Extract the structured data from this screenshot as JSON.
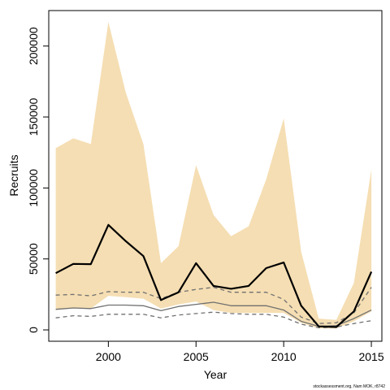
{
  "chart_data": {
    "type": "line",
    "xlabel": "Year",
    "ylabel": "Recruits",
    "xlim": [
      1996.6,
      2015.6
    ],
    "ylim": [
      -8000,
      225000
    ],
    "x_ticks": [
      2000,
      2005,
      2010,
      2015
    ],
    "y_ticks": [
      0,
      50000,
      100000,
      150000,
      200000
    ],
    "x": [
      1997,
      1998,
      1999,
      2000,
      2001,
      2002,
      2003,
      2004,
      2005,
      2006,
      2007,
      2008,
      2009,
      2010,
      2011,
      2012,
      2013,
      2014,
      2015
    ],
    "band": {
      "upper": [
        128000,
        135000,
        131000,
        217000,
        167000,
        131000,
        47000,
        59000,
        116000,
        81000,
        66000,
        73000,
        106000,
        149000,
        55000,
        8000,
        7000,
        33000,
        113000
      ],
      "lower": [
        14000,
        15000,
        15000,
        24000,
        23000,
        22000,
        15000,
        18000,
        20000,
        14000,
        12000,
        12000,
        12000,
        12000,
        5000,
        1000,
        1000,
        6000,
        13000
      ],
      "color": "#f5deb3"
    },
    "series": [
      {
        "key": "main",
        "values": [
          40000,
          46500,
          46300,
          74000,
          62500,
          52000,
          21000,
          26500,
          47000,
          31000,
          29000,
          31000,
          43500,
          47500,
          17000,
          2500,
          2000,
          13000,
          41000
        ],
        "color": "#000000",
        "style": "solid"
      },
      {
        "key": "upper-dashed",
        "values": [
          24500,
          25000,
          24000,
          27000,
          26500,
          26500,
          22000,
          26500,
          28500,
          30000,
          26500,
          26500,
          26500,
          21500,
          9000,
          4500,
          5000,
          12000,
          30000
        ],
        "color": "#707070",
        "style": "dashed"
      },
      {
        "key": "median",
        "values": [
          14500,
          15500,
          15000,
          17500,
          17500,
          17000,
          13500,
          16500,
          18000,
          19500,
          17000,
          17000,
          17000,
          14000,
          6000,
          2500,
          3000,
          8000,
          14000
        ],
        "color": "#707070",
        "style": "solid"
      },
      {
        "key": "lower-dashed",
        "values": [
          8500,
          10000,
          9500,
          11000,
          11000,
          11000,
          8500,
          10500,
          11500,
          12500,
          11500,
          11000,
          11000,
          9000,
          4000,
          1500,
          2000,
          4500,
          6500
        ],
        "color": "#707070",
        "style": "dashed"
      }
    ],
    "grid": false,
    "legend": "none"
  },
  "credit": "stockassessment.org, Nam  MOK, r8742"
}
